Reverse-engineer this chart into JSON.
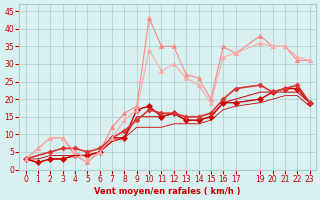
{
  "title": "",
  "xlabel": "Vent moyen/en rafales ( km/h )",
  "background_color": "#d8f0f0",
  "grid_color": "#aacccc",
  "text_color": "#cc0000",
  "lines": [
    {
      "x": [
        0,
        1,
        2,
        3,
        4,
        5,
        6,
        7,
        8,
        9,
        10,
        11,
        12,
        13,
        14,
        15,
        16,
        17,
        19,
        20,
        21,
        22,
        23
      ],
      "y": [
        3,
        2,
        3,
        3,
        4,
        4,
        5,
        9,
        9,
        17,
        18,
        15,
        16,
        14,
        14,
        15,
        19,
        19,
        20,
        22,
        23,
        23,
        19
      ],
      "color": "#cc0000",
      "marker": "D",
      "lw": 1.0,
      "ms": 3
    },
    {
      "x": [
        0,
        1,
        2,
        3,
        4,
        5,
        6,
        7,
        8,
        9,
        10,
        11,
        12,
        13,
        14,
        15,
        16,
        17,
        19,
        20,
        21,
        22,
        23
      ],
      "y": [
        3,
        6,
        9,
        9,
        4,
        2,
        5,
        12,
        16,
        18,
        43,
        35,
        35,
        27,
        26,
        20,
        35,
        33,
        38,
        35,
        35,
        31,
        31
      ],
      "color": "#ff8888",
      "marker": "^",
      "lw": 0.8,
      "ms": 3
    },
    {
      "x": [
        0,
        1,
        2,
        3,
        4,
        5,
        6,
        7,
        8,
        9,
        10,
        11,
        12,
        13,
        14,
        15,
        16,
        17,
        19,
        20,
        21,
        22,
        23
      ],
      "y": [
        3,
        2,
        3,
        3,
        4,
        4,
        5,
        8,
        9,
        15,
        15,
        15,
        16,
        14,
        14,
        15,
        19,
        20,
        22,
        22,
        22,
        22,
        19
      ],
      "color": "#cc0000",
      "marker": null,
      "lw": 0.7,
      "ms": 0
    },
    {
      "x": [
        0,
        1,
        2,
        3,
        4,
        5,
        6,
        7,
        8,
        9,
        10,
        11,
        12,
        13,
        14,
        15,
        16,
        17,
        19,
        20,
        21,
        22,
        23
      ],
      "y": [
        3,
        3,
        4,
        4,
        4,
        4,
        5,
        8,
        9,
        12,
        12,
        12,
        13,
        13,
        13,
        14,
        17,
        18,
        19,
        20,
        21,
        21,
        18
      ],
      "color": "#cc0000",
      "marker": null,
      "lw": 0.6,
      "ms": 0
    },
    {
      "x": [
        0,
        2,
        3,
        4,
        5,
        6,
        7,
        8,
        9,
        10,
        11,
        12,
        13,
        14,
        15,
        16,
        17,
        19,
        20,
        21,
        22,
        23
      ],
      "y": [
        3,
        5,
        6,
        6,
        5,
        6,
        9,
        11,
        14,
        17,
        16,
        16,
        15,
        15,
        16,
        20,
        23,
        24,
        22,
        23,
        24,
        19
      ],
      "color": "#dd3333",
      "marker": "D",
      "lw": 1.2,
      "ms": 2.5
    },
    {
      "x": [
        0,
        1,
        2,
        3,
        4,
        5,
        6,
        7,
        8,
        9,
        10,
        11,
        12,
        13,
        14,
        15,
        16,
        17,
        19,
        20,
        21,
        22,
        23
      ],
      "y": [
        3,
        6,
        9,
        9,
        5,
        3,
        5,
        9,
        14,
        17,
        34,
        28,
        30,
        26,
        24,
        19,
        32,
        33,
        36,
        35,
        35,
        32,
        31
      ],
      "color": "#ffaaaa",
      "marker": "^",
      "lw": 0.8,
      "ms": 3
    }
  ],
  "xlim": [
    -0.5,
    23.5
  ],
  "ylim": [
    0,
    47
  ],
  "yticks": [
    0,
    5,
    10,
    15,
    20,
    25,
    30,
    35,
    40,
    45
  ],
  "xticks": [
    0,
    1,
    2,
    3,
    4,
    5,
    6,
    7,
    8,
    9,
    10,
    11,
    12,
    13,
    14,
    15,
    16,
    17,
    19,
    20,
    21,
    22,
    23
  ]
}
